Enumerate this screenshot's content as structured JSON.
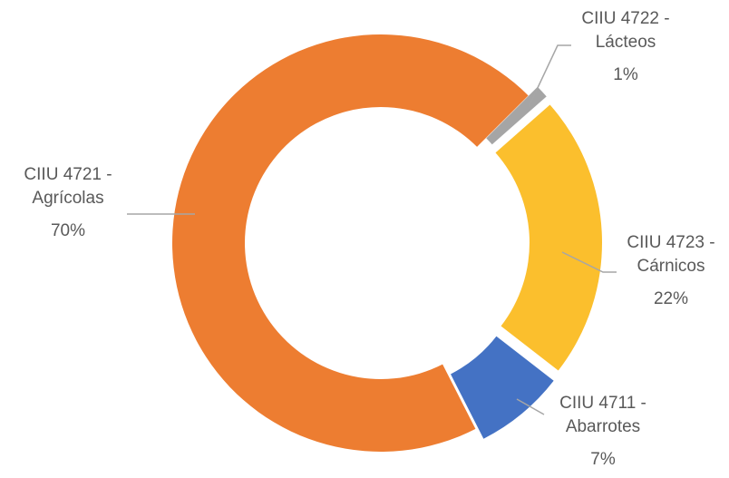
{
  "chart_data": {
    "type": "donut",
    "categories": [
      "CIIU 4722 - Lácteos",
      "CIIU 4723 - Cárnicos",
      "CIIU 4711 - Abarrotes",
      "CIIU 4721 - Agrícolas"
    ],
    "values": [
      1,
      22,
      7,
      70
    ],
    "value_labels": [
      "1%",
      "22%",
      "7%",
      "70%"
    ],
    "colors": [
      "#A5A5A5",
      "#FBBF2D",
      "#4472C4",
      "#ED7D31"
    ]
  }
}
